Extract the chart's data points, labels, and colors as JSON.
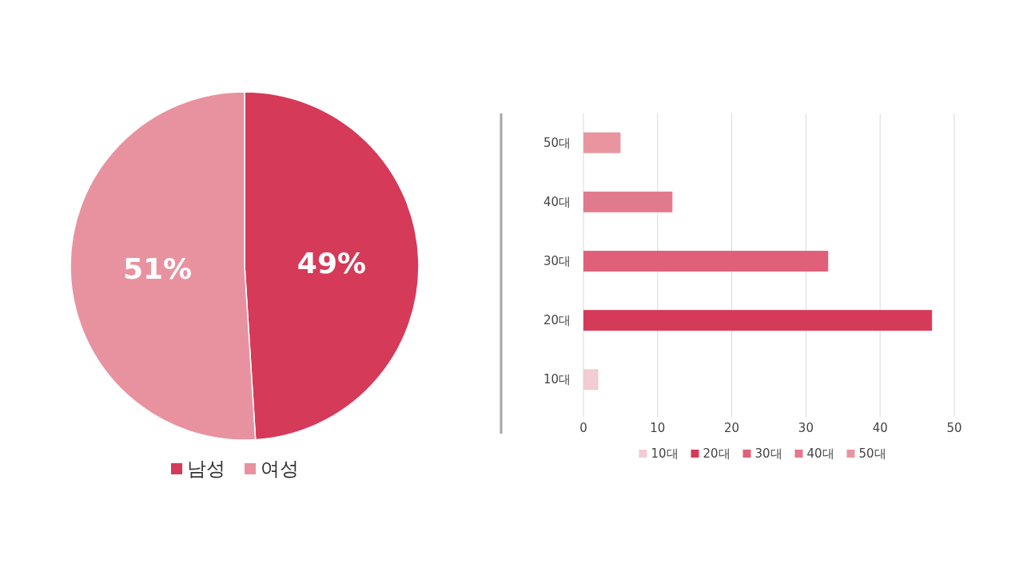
{
  "chart_data": [
    {
      "type": "pie",
      "categories": [
        "남성",
        "여성"
      ],
      "values": [
        49,
        51
      ],
      "colors": [
        "#d63a59",
        "#e8929f"
      ],
      "value_labels": [
        "49%",
        "51%"
      ],
      "legend": "bottom"
    },
    {
      "type": "bar",
      "orientation": "horizontal",
      "categories": [
        "50대",
        "40대",
        "30대",
        "20대",
        "10대"
      ],
      "series": [
        {
          "name": "10대",
          "color": "#f2cbd3",
          "values": [
            null,
            null,
            null,
            null,
            2
          ]
        },
        {
          "name": "20대",
          "color": "#d63a59",
          "values": [
            null,
            null,
            null,
            47,
            null
          ]
        },
        {
          "name": "30대",
          "color": "#e0607a",
          "values": [
            null,
            null,
            33,
            null,
            null
          ]
        },
        {
          "name": "40대",
          "color": "#e27a8d",
          "values": [
            null,
            12,
            null,
            null,
            null
          ]
        },
        {
          "name": "50대",
          "color": "#e8959f",
          "values": [
            5,
            null,
            null,
            null,
            null
          ]
        }
      ],
      "xlim": [
        0,
        50
      ],
      "xticks": [
        0,
        10,
        20,
        30,
        40,
        50
      ],
      "grid": "x",
      "legend": "bottom"
    }
  ]
}
